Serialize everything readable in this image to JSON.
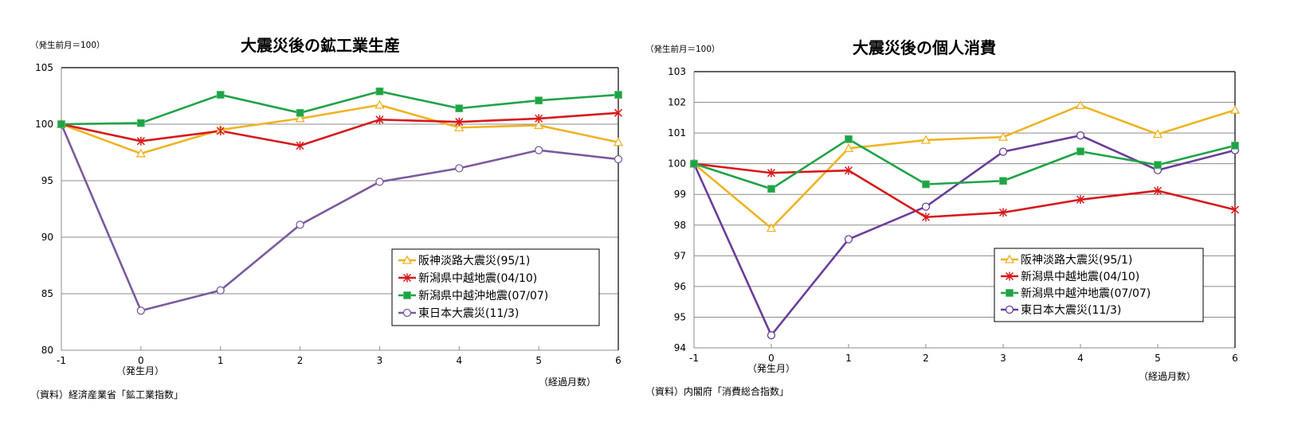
{
  "chart_data": [
    {
      "type": "line",
      "title": "大震災後の鉱工業生産",
      "unit_label": "（発生前月＝100）",
      "xlabel": "（経過月数）",
      "x_sublabel": "（発生月）",
      "source": "（資料）経済産業省「鉱工業指数」",
      "x": [
        -1,
        0,
        1,
        2,
        3,
        4,
        5,
        6
      ],
      "x_tick_labels": [
        "-1",
        "0",
        "1",
        "2",
        "3",
        "4",
        "5",
        "6"
      ],
      "ylim": [
        80,
        105
      ],
      "y_ticks": [
        80,
        85,
        90,
        95,
        100,
        105
      ],
      "grid": true,
      "legend_position": "bottom-right",
      "series": [
        {
          "name": "阪神淡路大震災(95/1)",
          "color": "#F0B323",
          "marker": "triangle",
          "values": [
            100,
            97.4,
            99.5,
            100.5,
            101.7,
            99.7,
            99.9,
            98.4
          ]
        },
        {
          "name": "新潟県中越地震(04/10)",
          "color": "#D7191C",
          "marker": "asterisk",
          "values": [
            100,
            98.5,
            99.4,
            98.1,
            100.4,
            100.2,
            100.5,
            101.0
          ]
        },
        {
          "name": "新潟県中越沖地震(07/07)",
          "color": "#1FA347",
          "marker": "square",
          "values": [
            100,
            100.1,
            102.6,
            101.0,
            102.9,
            101.4,
            102.1,
            102.6
          ]
        },
        {
          "name": "東日本大震災(11/3)",
          "color": "#7A5A9E",
          "marker": "circle",
          "values": [
            100,
            83.5,
            85.3,
            91.1,
            94.9,
            96.1,
            97.7,
            96.9
          ]
        }
      ]
    },
    {
      "type": "line",
      "title": "大震災後の個人消費",
      "unit_label": "（発生前月＝100）",
      "xlabel": "（経過月数）",
      "x_sublabel": "（発生月）",
      "source": "（資料）内閣府「消費総合指数」",
      "x": [
        -1,
        0,
        1,
        2,
        3,
        4,
        5,
        6
      ],
      "x_tick_labels": [
        "-1",
        "0",
        "1",
        "2",
        "3",
        "4",
        "5",
        "6"
      ],
      "ylim": [
        94,
        103
      ],
      "y_ticks": [
        94,
        95,
        96,
        97,
        98,
        99,
        100,
        101,
        102,
        103
      ],
      "grid": true,
      "legend_position": "bottom-right",
      "series": [
        {
          "name": "阪神淡路大震災(95/1)",
          "color": "#F0B323",
          "marker": "triangle",
          "values": [
            100,
            97.9,
            100.5,
            100.77,
            100.87,
            101.9,
            100.96,
            101.75
          ]
        },
        {
          "name": "新潟県中越地震(04/10)",
          "color": "#D7191C",
          "marker": "asterisk",
          "values": [
            100,
            99.7,
            99.78,
            98.26,
            98.41,
            98.83,
            99.12,
            98.5
          ]
        },
        {
          "name": "新潟県中越沖地震(07/07)",
          "color": "#1FA347",
          "marker": "square",
          "values": [
            100,
            99.18,
            100.8,
            99.33,
            99.44,
            100.4,
            99.96,
            100.59
          ]
        },
        {
          "name": "東日本大震災(11/3)",
          "color": "#6A3D9A",
          "marker": "circle",
          "values": [
            100,
            94.41,
            97.54,
            98.6,
            100.39,
            100.92,
            99.79,
            100.44
          ]
        }
      ]
    }
  ]
}
